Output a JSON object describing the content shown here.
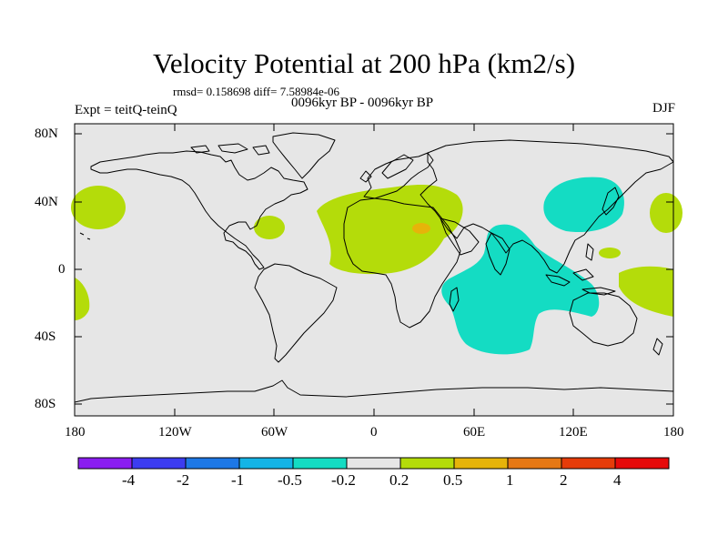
{
  "title": "Velocity Potential at 200 hPa (km2/s)",
  "stats": "rmsd= 0.158698 diff= 7.58984e-06",
  "experiment": "Expt = teitQ-teinQ",
  "period": "0096kyr BP - 0096kyr BP",
  "season": "DJF",
  "axes": {
    "lat_labels": [
      "80N",
      "40N",
      "0",
      "40S",
      "80S"
    ],
    "lon_labels": [
      "180",
      "120W",
      "60W",
      "0",
      "60E",
      "120E",
      "180"
    ]
  },
  "colorbar": {
    "labels": [
      "-4",
      "-2",
      "-1",
      "-0.5",
      "-0.2",
      "0.2",
      "0.5",
      "1",
      "2",
      "4"
    ],
    "colors": [
      "#8a1ef0",
      "#3c3cf0",
      "#1e78e6",
      "#14b4e6",
      "#14dcc3",
      "#e6e6e6",
      "#b4dc0a",
      "#e6b40a",
      "#e67814",
      "#e63c0a",
      "#e60a0a"
    ]
  },
  "colors": {
    "ocean_land_background": "#e6e6e6",
    "positive_weak": "#b4dc0a",
    "positive_mid": "#e6b40a",
    "positive_strong": "#e67814",
    "negative_weak": "#14dcc3"
  }
}
